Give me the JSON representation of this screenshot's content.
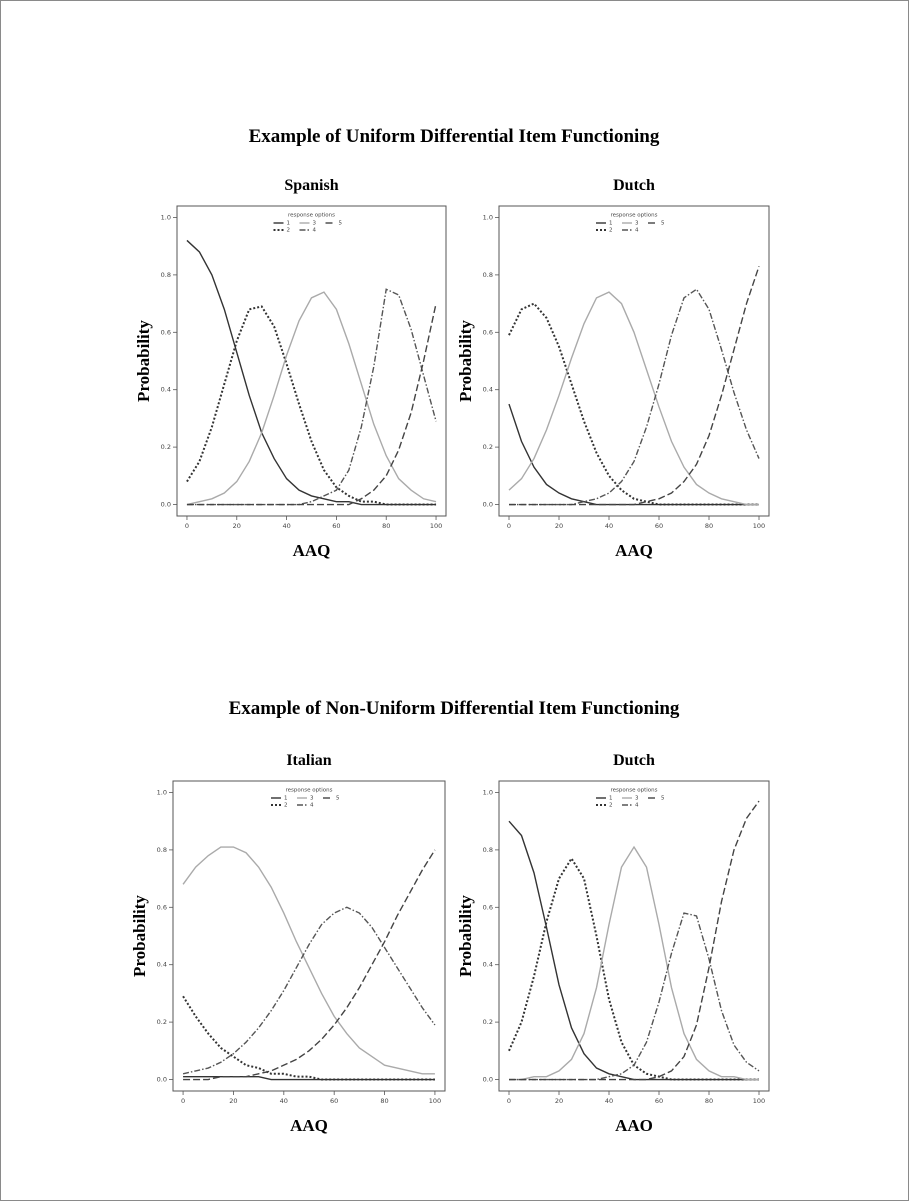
{
  "section_titles": [
    "Example of Uniform Differential Item Functioning",
    "Example of Non-Uniform Differential Item Functioning"
  ],
  "chart_data": [
    {
      "type": "line",
      "title": "Spanish",
      "xlabel": "AAQ",
      "ylabel": "Probability",
      "legend_title": "response options",
      "x": [
        0,
        5,
        10,
        15,
        20,
        25,
        30,
        35,
        40,
        45,
        50,
        55,
        60,
        65,
        70,
        75,
        80,
        85,
        90,
        95,
        100
      ],
      "xlim": [
        -4,
        104
      ],
      "ylim": [
        -0.04,
        1.04
      ],
      "xticks": [
        0,
        20,
        40,
        60,
        80,
        100
      ],
      "yticks": [
        {
          "value": 0,
          "label": "0.0"
        },
        {
          "value": 0.2,
          "label": "0.2"
        },
        {
          "value": 0.4,
          "label": "0.4"
        },
        {
          "value": 0.6,
          "label": "0.6"
        },
        {
          "value": 0.8,
          "label": "0.8"
        },
        {
          "value": 1,
          "label": "1.0"
        }
      ],
      "series": [
        {
          "name": "1",
          "color": "#333333",
          "linestyle": "solid",
          "values": [
            0.92,
            0.88,
            0.8,
            0.68,
            0.53,
            0.38,
            0.25,
            0.16,
            0.09,
            0.05,
            0.03,
            0.02,
            0.01,
            0.01,
            0,
            0,
            0,
            0,
            0,
            0,
            0
          ]
        },
        {
          "name": "2",
          "color": "#333333",
          "linestyle": "dotted",
          "values": [
            0.08,
            0.15,
            0.27,
            0.42,
            0.57,
            0.68,
            0.69,
            0.62,
            0.49,
            0.35,
            0.22,
            0.12,
            0.06,
            0.03,
            0.01,
            0.01,
            0,
            0,
            0,
            0,
            0
          ]
        },
        {
          "name": "3",
          "color": "#aaaaaa",
          "linestyle": "solid",
          "values": [
            0,
            0.01,
            0.02,
            0.04,
            0.08,
            0.15,
            0.25,
            0.38,
            0.52,
            0.64,
            0.72,
            0.74,
            0.68,
            0.56,
            0.42,
            0.28,
            0.17,
            0.09,
            0.05,
            0.02,
            0.01
          ]
        },
        {
          "name": "4",
          "color": "#555555",
          "linestyle": "dashdot",
          "values": [
            0,
            0,
            0,
            0,
            0,
            0,
            0,
            0,
            0,
            0,
            0.01,
            0.03,
            0.05,
            0.12,
            0.27,
            0.48,
            0.75,
            0.73,
            0.61,
            0.45,
            0.29
          ]
        },
        {
          "name": "5",
          "color": "#444444",
          "linestyle": "longdash",
          "values": [
            0,
            0,
            0,
            0,
            0,
            0,
            0,
            0,
            0,
            0,
            0,
            0,
            0,
            0,
            0.02,
            0.05,
            0.1,
            0.19,
            0.32,
            0.5,
            0.7
          ]
        }
      ]
    },
    {
      "type": "line",
      "title": "Dutch",
      "xlabel": "AAQ",
      "ylabel": "Probability",
      "legend_title": "response options",
      "x": [
        0,
        5,
        10,
        15,
        20,
        25,
        30,
        35,
        40,
        45,
        50,
        55,
        60,
        65,
        70,
        75,
        80,
        85,
        90,
        95,
        100
      ],
      "xlim": [
        -4,
        104
      ],
      "ylim": [
        -0.04,
        1.04
      ],
      "xticks": [
        0,
        20,
        40,
        60,
        80,
        100
      ],
      "yticks": [
        {
          "value": 0,
          "label": "0.0"
        },
        {
          "value": 0.2,
          "label": "0.2"
        },
        {
          "value": 0.4,
          "label": "0.4"
        },
        {
          "value": 0.6,
          "label": "0.6"
        },
        {
          "value": 0.8,
          "label": "0.8"
        },
        {
          "value": 1,
          "label": "1.0"
        }
      ],
      "series": [
        {
          "name": "1",
          "color": "#333333",
          "linestyle": "solid",
          "values": [
            0.35,
            0.22,
            0.13,
            0.07,
            0.04,
            0.02,
            0.01,
            0,
            0,
            0,
            0,
            0,
            0,
            0,
            0,
            0,
            0,
            0,
            0,
            0,
            0
          ]
        },
        {
          "name": "2",
          "color": "#333333",
          "linestyle": "dotted",
          "values": [
            0.59,
            0.68,
            0.7,
            0.65,
            0.55,
            0.42,
            0.29,
            0.18,
            0.1,
            0.05,
            0.02,
            0.01,
            0,
            0,
            0,
            0,
            0,
            0,
            0,
            0,
            0
          ]
        },
        {
          "name": "3",
          "color": "#aaaaaa",
          "linestyle": "solid",
          "values": [
            0.05,
            0.09,
            0.16,
            0.26,
            0.38,
            0.51,
            0.63,
            0.72,
            0.74,
            0.7,
            0.6,
            0.47,
            0.34,
            0.22,
            0.13,
            0.07,
            0.04,
            0.02,
            0.01,
            0,
            0
          ]
        },
        {
          "name": "4",
          "color": "#555555",
          "linestyle": "dashdot",
          "values": [
            0,
            0,
            0,
            0,
            0,
            0,
            0.01,
            0.02,
            0.04,
            0.08,
            0.15,
            0.27,
            0.42,
            0.59,
            0.72,
            0.75,
            0.68,
            0.54,
            0.39,
            0.26,
            0.16
          ]
        },
        {
          "name": "5",
          "color": "#444444",
          "linestyle": "longdash",
          "values": [
            0,
            0,
            0,
            0,
            0,
            0,
            0,
            0,
            0,
            0,
            0,
            0.01,
            0.02,
            0.04,
            0.08,
            0.14,
            0.24,
            0.38,
            0.54,
            0.7,
            0.83
          ]
        }
      ]
    },
    {
      "type": "line",
      "title": "Italian",
      "xlabel": "AAQ",
      "ylabel": "Probability",
      "legend_title": "response options",
      "x": [
        0,
        5,
        10,
        15,
        20,
        25,
        30,
        35,
        40,
        45,
        50,
        55,
        60,
        65,
        70,
        75,
        80,
        85,
        90,
        95,
        100
      ],
      "xlim": [
        -4,
        104
      ],
      "ylim": [
        -0.04,
        1.04
      ],
      "xticks": [
        0,
        20,
        40,
        60,
        80,
        100
      ],
      "yticks": [
        {
          "value": 0,
          "label": "0.0"
        },
        {
          "value": 0.2,
          "label": "0.2"
        },
        {
          "value": 0.4,
          "label": "0.4"
        },
        {
          "value": 0.6,
          "label": "0.6"
        },
        {
          "value": 0.8,
          "label": "0.8"
        },
        {
          "value": 1,
          "label": "1.0"
        }
      ],
      "series": [
        {
          "name": "1",
          "color": "#333333",
          "linestyle": "solid",
          "values": [
            0.01,
            0.01,
            0.01,
            0.01,
            0.01,
            0.01,
            0.01,
            0,
            0,
            0,
            0,
            0,
            0,
            0,
            0,
            0,
            0,
            0,
            0,
            0,
            0
          ]
        },
        {
          "name": "2",
          "color": "#333333",
          "linestyle": "dotted",
          "values": [
            0.29,
            0.22,
            0.16,
            0.11,
            0.08,
            0.05,
            0.04,
            0.02,
            0.02,
            0.01,
            0.01,
            0,
            0,
            0,
            0,
            0,
            0,
            0,
            0,
            0,
            0
          ]
        },
        {
          "name": "3",
          "color": "#aaaaaa",
          "linestyle": "solid",
          "values": [
            0.68,
            0.74,
            0.78,
            0.81,
            0.81,
            0.79,
            0.74,
            0.67,
            0.58,
            0.48,
            0.39,
            0.3,
            0.22,
            0.16,
            0.11,
            0.08,
            0.05,
            0.04,
            0.03,
            0.02,
            0.02
          ]
        },
        {
          "name": "4",
          "color": "#555555",
          "linestyle": "dashdot",
          "values": [
            0.02,
            0.03,
            0.04,
            0.06,
            0.09,
            0.13,
            0.18,
            0.24,
            0.31,
            0.39,
            0.47,
            0.54,
            0.58,
            0.6,
            0.58,
            0.53,
            0.46,
            0.39,
            0.32,
            0.25,
            0.19
          ]
        },
        {
          "name": "5",
          "color": "#444444",
          "linestyle": "longdash",
          "values": [
            0,
            0,
            0,
            0.01,
            0.01,
            0.01,
            0.02,
            0.03,
            0.05,
            0.07,
            0.1,
            0.14,
            0.19,
            0.25,
            0.32,
            0.4,
            0.48,
            0.57,
            0.65,
            0.73,
            0.8
          ]
        }
      ]
    },
    {
      "type": "line",
      "title": "Dutch",
      "xlabel": "AAO",
      "ylabel": "Probability",
      "legend_title": "response options",
      "x": [
        0,
        5,
        10,
        15,
        20,
        25,
        30,
        35,
        40,
        45,
        50,
        55,
        60,
        65,
        70,
        75,
        80,
        85,
        90,
        95,
        100
      ],
      "xlim": [
        -4,
        104
      ],
      "ylim": [
        -0.04,
        1.04
      ],
      "xticks": [
        0,
        20,
        40,
        60,
        80,
        100
      ],
      "yticks": [
        {
          "value": 0,
          "label": "0.0"
        },
        {
          "value": 0.2,
          "label": "0.2"
        },
        {
          "value": 0.4,
          "label": "0.4"
        },
        {
          "value": 0.6,
          "label": "0.6"
        },
        {
          "value": 0.8,
          "label": "0.8"
        },
        {
          "value": 1,
          "label": "1.0"
        }
      ],
      "series": [
        {
          "name": "1",
          "color": "#333333",
          "linestyle": "solid",
          "values": [
            0.9,
            0.85,
            0.72,
            0.53,
            0.33,
            0.18,
            0.09,
            0.04,
            0.02,
            0.01,
            0,
            0,
            0,
            0,
            0,
            0,
            0,
            0,
            0,
            0,
            0
          ]
        },
        {
          "name": "2",
          "color": "#333333",
          "linestyle": "dotted",
          "values": [
            0.1,
            0.2,
            0.36,
            0.55,
            0.7,
            0.77,
            0.7,
            0.5,
            0.28,
            0.13,
            0.05,
            0.02,
            0.01,
            0,
            0,
            0,
            0,
            0,
            0,
            0,
            0
          ]
        },
        {
          "name": "3",
          "color": "#aaaaaa",
          "linestyle": "solid",
          "values": [
            0,
            0,
            0.01,
            0.01,
            0.03,
            0.07,
            0.16,
            0.32,
            0.54,
            0.74,
            0.81,
            0.74,
            0.54,
            0.32,
            0.16,
            0.07,
            0.03,
            0.01,
            0.01,
            0,
            0
          ]
        },
        {
          "name": "4",
          "color": "#555555",
          "linestyle": "dashdot",
          "values": [
            0,
            0,
            0,
            0,
            0,
            0,
            0,
            0,
            0.01,
            0.02,
            0.05,
            0.13,
            0.27,
            0.44,
            0.58,
            0.57,
            0.42,
            0.24,
            0.12,
            0.06,
            0.03
          ]
        },
        {
          "name": "5",
          "color": "#444444",
          "linestyle": "longdash",
          "values": [
            0,
            0,
            0,
            0,
            0,
            0,
            0,
            0,
            0,
            0,
            0,
            0,
            0.01,
            0.03,
            0.08,
            0.19,
            0.39,
            0.62,
            0.8,
            0.91,
            0.97
          ]
        }
      ]
    }
  ]
}
